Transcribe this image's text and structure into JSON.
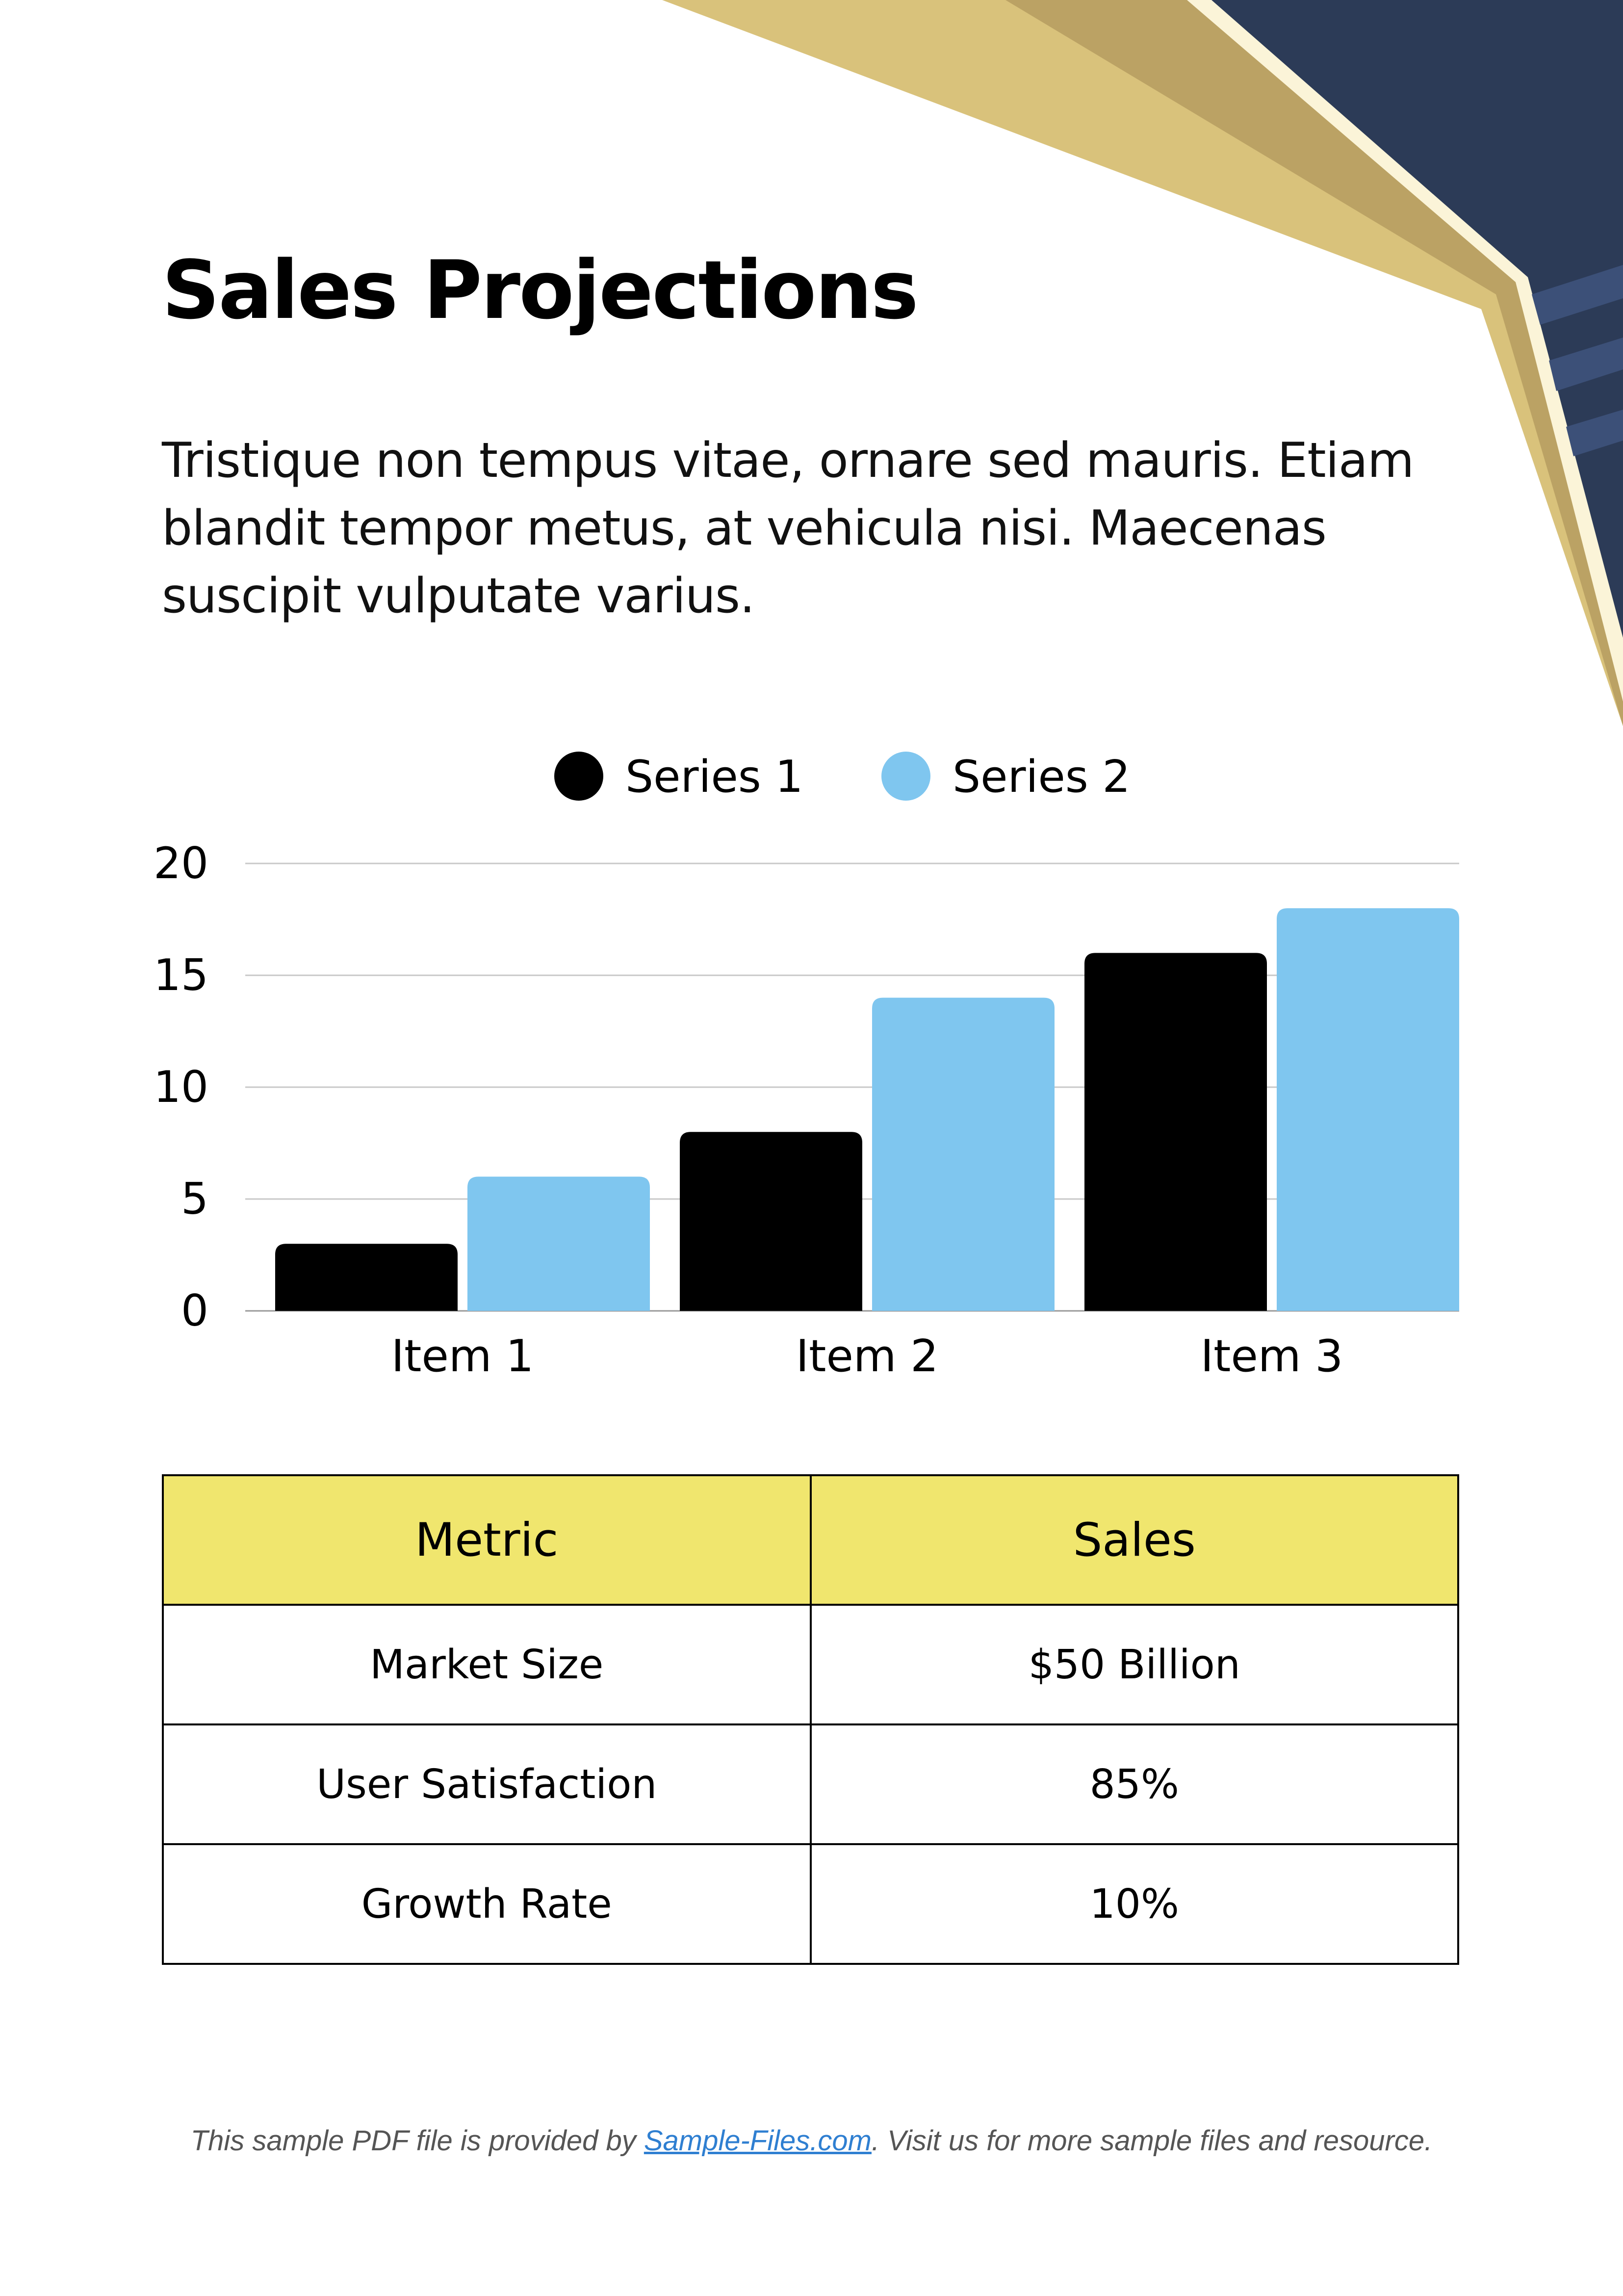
{
  "document": {
    "title": "Sales Projections",
    "intro": "Tristique non tempus vitae, ornare sed mauris. Etiam blandit tempor metus, at vehicula nisi. Maecenas suscipit vulputate varius."
  },
  "colors": {
    "gold_light": "#d9c27b",
    "gold_dark": "#bba264",
    "navy": "#2c3b57",
    "navy_stripe": "#3c5078",
    "cream": "#fbf4d8",
    "series1": "#000000",
    "series2": "#7fc6ef",
    "table_header": "#f0e66e",
    "link": "#2f7fd1"
  },
  "chart_data": {
    "type": "bar",
    "categories": [
      "Item 1",
      "Item 2",
      "Item 3"
    ],
    "series": [
      {
        "name": "Series 1",
        "values": [
          3,
          8,
          16
        ],
        "color": "#000000"
      },
      {
        "name": "Series 2",
        "values": [
          6,
          14,
          18
        ],
        "color": "#7fc6ef"
      }
    ],
    "yticks": [
      0,
      5,
      10,
      15,
      20
    ],
    "ylim": [
      0,
      20
    ],
    "grid": true,
    "legend": "top"
  },
  "table": {
    "headers": [
      "Metric",
      "Sales"
    ],
    "rows": [
      [
        "Market Size",
        "$50 Billion"
      ],
      [
        "User Satisfaction",
        "85%"
      ],
      [
        "Growth Rate",
        "10%"
      ]
    ]
  },
  "footer": {
    "prefix": "This sample PDF file is provided by ",
    "link_text": "Sample-Files.com",
    "suffix": ". Visit us for more sample files and resource."
  }
}
